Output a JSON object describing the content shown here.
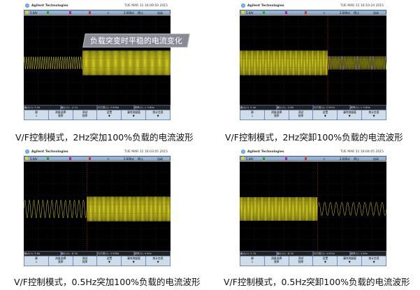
{
  "scope": {
    "brand": "Agilent Technologies",
    "vscale": "5.0A/",
    "hscale": "2.000s/",
    "run_state": "停止",
    "trigger_mode": "自动",
    "softkeys": [
      "源\n1",
      "测量选择\n频率",
      "测试\n频率",
      "设置\n▼",
      "清除测量值\n▼",
      "统计信息\n▼"
    ],
    "meas_labels": [
      "最大(1):",
      "最小(1):",
      "均方根(1):",
      "频率(1):"
    ],
    "colors": {
      "trace": "#d8d020",
      "grid": "#555555",
      "marker": "#c03020",
      "status_bar": "#8fb4de"
    }
  },
  "callout": "负载突变时平稳的电流变化",
  "panels": [
    {
      "timestamp": "TUE MAR 31 16:09:50 2015",
      "meas": [
        "5.5A",
        "-4.1A",
        "3.008A",
        "> 5.8Hz"
      ],
      "caption": "V/F控制模式，2Hz突加100%负载的电流波形"
    },
    {
      "timestamp": "TUE MAR 31 16:10:24 2015",
      "meas": [
        "5.4A",
        "-4.6A",
        "2.951A",
        "> 5.8Hz"
      ],
      "caption": "V/F控制模式，2Hz突卸100%负载的电流波形"
    },
    {
      "timestamp": "TUE MAR 31 16:03:05 2015",
      "meas": [
        "5.8A",
        "-6.3A",
        "4.008A",
        "4.5Hz"
      ],
      "caption": "V/F控制模式，0.5Hz突加100%负载的电流波形"
    },
    {
      "timestamp": "TUE MAR 31 16:04:05 2015",
      "meas": [
        "5.7A",
        "-6.3A",
        "4.051A",
        "4.5Hz"
      ],
      "caption": "V/F控制模式，0.5Hz突卸100%负载的电流波形"
    }
  ]
}
